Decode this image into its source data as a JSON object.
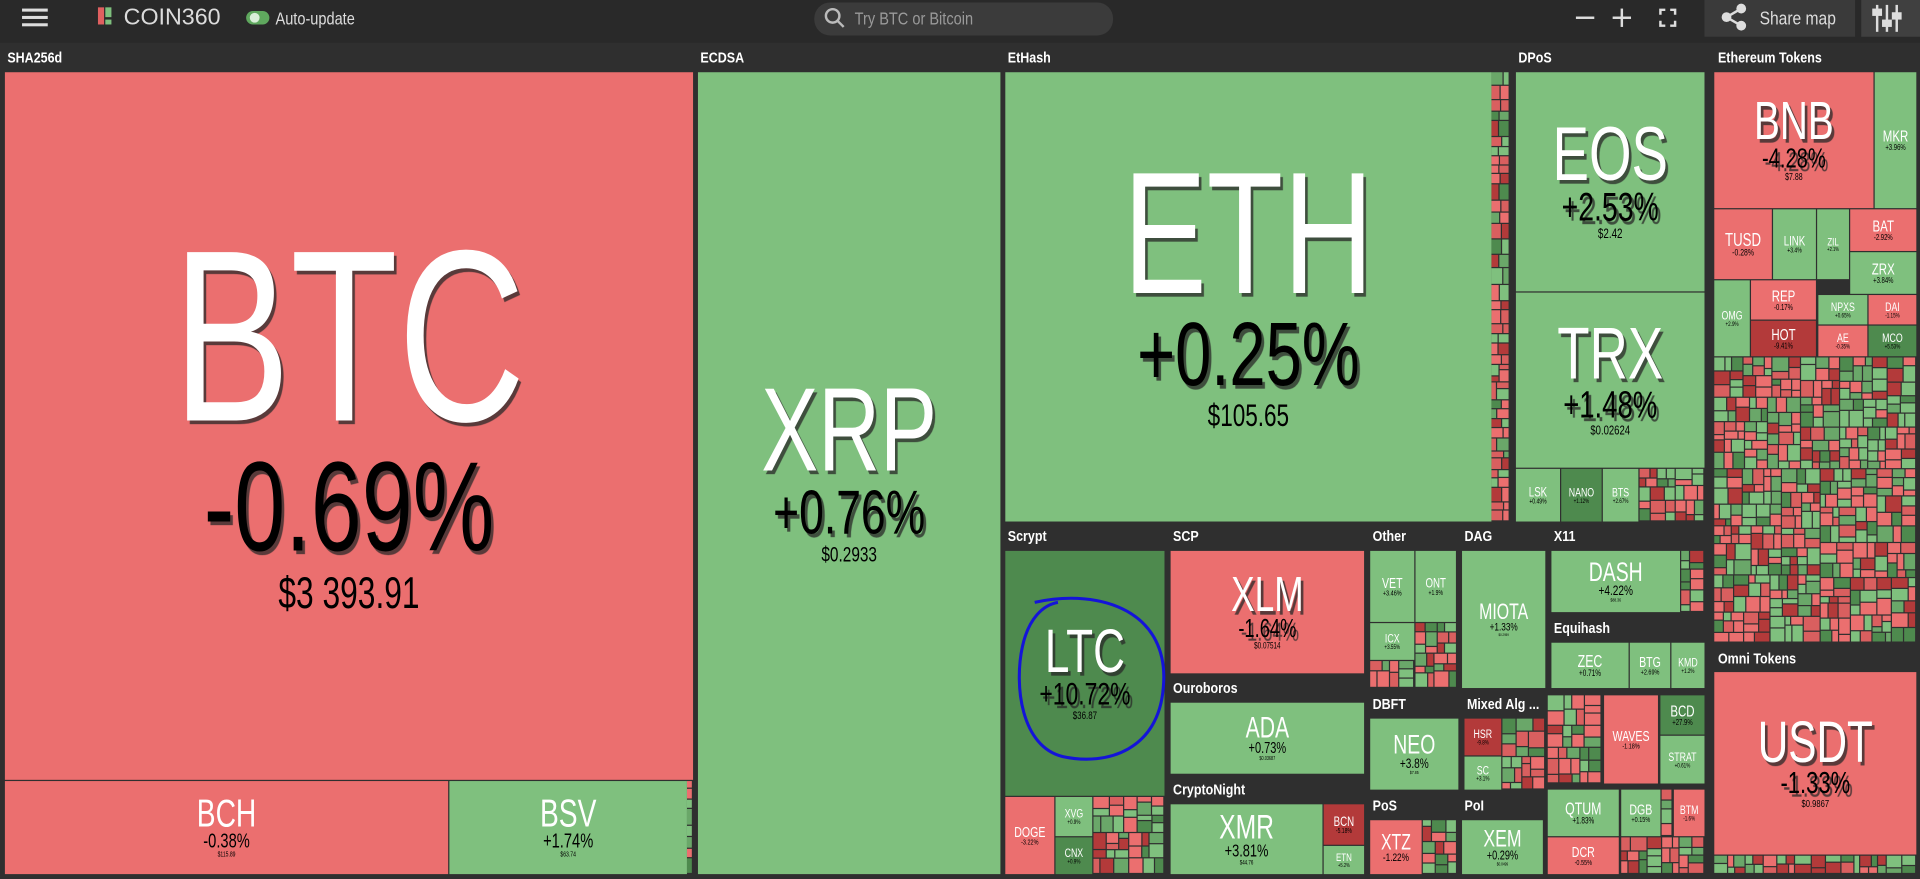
{
  "header": {
    "brand": "COIN360",
    "toggle": "Auto-update",
    "search": "Try BTC or Bitcoin",
    "share": "Share map"
  },
  "groups": [
    {
      "name": "SHA256d",
      "tiles": [
        {
          "symbol": "BTC",
          "change": "-0.69%",
          "price": "$3 393.91"
        },
        {
          "symbol": "BCH",
          "change": "-0.38%",
          "price": "$115.89"
        },
        {
          "symbol": "BSV",
          "change": "+1.74%",
          "price": "$63.74"
        }
      ]
    },
    {
      "name": "ECDSA",
      "tiles": [
        {
          "symbol": "XRP",
          "change": "+0.76%",
          "price": "$0.2933"
        }
      ]
    },
    {
      "name": "EtHash",
      "tiles": [
        {
          "symbol": "ETH",
          "change": "+0.25%",
          "price": "$105.65"
        }
      ]
    },
    {
      "name": "DPoS",
      "tiles": [
        {
          "symbol": "EOS",
          "change": "+2.53%",
          "price": "$2.42"
        },
        {
          "symbol": "TRX",
          "change": "+1.48%",
          "price": "$0.02624"
        },
        {
          "symbol": "LSK",
          "change": "+0.49%"
        },
        {
          "symbol": "NANO",
          "change": "+1.12%"
        },
        {
          "symbol": "BTS",
          "change": "+2.67%"
        }
      ]
    },
    {
      "name": "Ethereum Tokens",
      "tiles": [
        {
          "symbol": "BNB",
          "change": "-4.28%",
          "price": "$7.88"
        },
        {
          "symbol": "MKR",
          "change": "+3.96%"
        },
        {
          "symbol": "TUSD",
          "change": "-0.28%"
        },
        {
          "symbol": "LINK",
          "change": "+3.4%"
        },
        {
          "symbol": "ZIL",
          "change": "+2.1%"
        },
        {
          "symbol": "BAT",
          "change": "-2.92%"
        },
        {
          "symbol": "ZRX",
          "change": "+3.84%"
        },
        {
          "symbol": "REP",
          "change": "-0.17%"
        },
        {
          "symbol": "OMG",
          "change": "+2.9%"
        },
        {
          "symbol": "HOT",
          "change": "-9.41%"
        },
        {
          "symbol": "NPXS",
          "change": "+0.65%"
        },
        {
          "symbol": "DAI",
          "change": "-1.15%"
        },
        {
          "symbol": "AE",
          "change": "-0.35%"
        },
        {
          "symbol": "MCO",
          "change": "+5.53%"
        }
      ]
    },
    {
      "name": "Omni Tokens",
      "tiles": [
        {
          "symbol": "USDT",
          "change": "-1.33%",
          "price": "$0.9867"
        }
      ]
    },
    {
      "name": "Scrypt",
      "tiles": [
        {
          "symbol": "LTC",
          "change": "+10.72%",
          "price": "$36.87"
        },
        {
          "symbol": "DOGE",
          "change": "-3.22%"
        },
        {
          "symbol": "XVG",
          "change": "+0.9%"
        },
        {
          "symbol": "CNX",
          "change": "+0.9%"
        }
      ]
    },
    {
      "name": "SCP",
      "tiles": [
        {
          "symbol": "XLM",
          "change": "-1.64%",
          "price": "$0.07514"
        }
      ]
    },
    {
      "name": "Ouroboros",
      "tiles": [
        {
          "symbol": "ADA",
          "change": "+0.73%",
          "price": "$0.03687"
        }
      ]
    },
    {
      "name": "CryptoNight",
      "tiles": [
        {
          "symbol": "XMR",
          "change": "+3.81%",
          "price": "$44.76"
        },
        {
          "symbol": "BCN",
          "change": "-5.18%"
        },
        {
          "symbol": "ETN",
          "change": "+5.2%"
        }
      ]
    },
    {
      "name": "Other",
      "tiles": [
        {
          "symbol": "VET",
          "change": "+3.46%"
        },
        {
          "symbol": "ONT",
          "change": "+1.9%"
        },
        {
          "symbol": "ICX",
          "change": "+3.55%"
        }
      ]
    },
    {
      "name": "DAG",
      "tiles": [
        {
          "symbol": "MIOTA",
          "change": "+1.33%",
          "price": "$0.2959"
        }
      ]
    },
    {
      "name": "X11",
      "tiles": [
        {
          "symbol": "DASH",
          "change": "+4.22%",
          "price": "$88.36"
        }
      ]
    },
    {
      "name": "Equihash",
      "tiles": [
        {
          "symbol": "ZEC",
          "change": "+0.71%"
        },
        {
          "symbol": "BTG",
          "change": "+2.69%"
        },
        {
          "symbol": "KMD",
          "change": "+1.2%"
        }
      ]
    },
    {
      "name": "DBFT",
      "tiles": [
        {
          "symbol": "NEO",
          "change": "+3.8%",
          "price": "$7.85"
        }
      ]
    },
    {
      "name": "Mixed Alg ...",
      "tiles": [
        {
          "symbol": "HSR",
          "change": "-9.8%"
        },
        {
          "symbol": "SC",
          "change": "+3.1%"
        }
      ]
    },
    {
      "name": "PoS",
      "tiles": [
        {
          "symbol": "XTZ",
          "change": "-1.22%"
        }
      ]
    },
    {
      "name": "PoI",
      "tiles": [
        {
          "symbol": "XEM",
          "change": "+0.29%",
          "price": "$0.0499"
        }
      ]
    }
  ],
  "unlabeled_tiles": [
    {
      "symbol": "WAVES",
      "change": "-1.18%"
    },
    {
      "symbol": "BCD",
      "change": "+27.9%"
    },
    {
      "symbol": "STRAT",
      "change": "+0.61%"
    },
    {
      "symbol": "QTUM",
      "change": "+1.83%"
    },
    {
      "symbol": "DGB",
      "change": "+0.15%"
    },
    {
      "symbol": "BTM",
      "change": "-1.6%"
    },
    {
      "symbol": "DCR",
      "change": "-0.55%"
    }
  ]
}
